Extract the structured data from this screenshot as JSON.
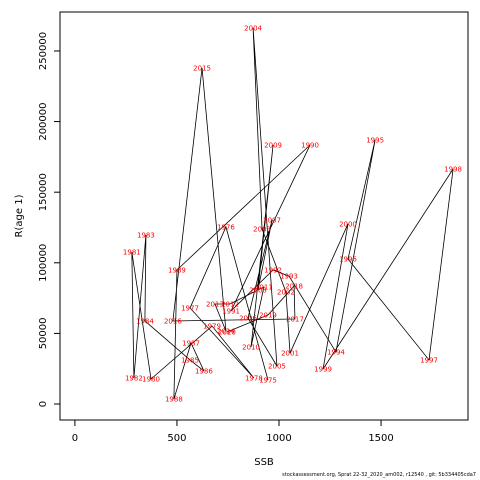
{
  "chart_data": {
    "type": "line",
    "x_label": "SSB",
    "y_label": "R(age 1)",
    "footer": "stockassessment.org, Sprat 22-32_2020_am002, r12540 , git: 5b334405cda7",
    "xlim": [
      -73,
      1926
    ],
    "ylim": [
      -11330,
      277600
    ],
    "xticks": [
      0,
      500,
      1000,
      1500
    ],
    "yticks": [
      0,
      50000,
      100000,
      150000,
      200000,
      250000
    ],
    "line_color": "#000000",
    "label_color": "#ff0000",
    "labels": [
      "1975",
      "1976",
      "1977",
      "1978",
      "1979",
      "1980",
      "1981",
      "1982",
      "1983",
      "1984",
      "1985",
      "1986",
      "1987",
      "1988",
      "1989",
      "1990",
      "1991",
      "1992",
      "1993",
      "1994",
      "1995",
      "1996",
      "1997",
      "1998",
      "1999",
      "2000",
      "2001",
      "2002",
      "2003",
      "2004",
      "2005",
      "2006",
      "2007",
      "2008",
      "2009",
      "2010",
      "2011",
      "2012",
      "2013",
      "2014",
      "2015",
      "2016",
      "2017",
      "2018",
      "2019",
      "2020"
    ],
    "x": [
      946,
      740,
      564,
      877,
      672,
      373,
      279,
      289,
      348,
      343,
      564,
      632,
      569,
      485,
      500,
      1152,
      765,
      971,
      1049,
      1279,
      1471,
      1338,
      1735,
      1853,
      1216,
      1338,
      1054,
      1034,
      917,
      873,
      990,
      848,
      966,
      897,
      971,
      863,
      926,
      760,
      686,
      740,
      623,
      480,
      1078,
      1074,
      946,
      745
    ],
    "values": [
      17000,
      125350,
      68000,
      18400,
      55200,
      17700,
      107600,
      18400,
      119700,
      58800,
      31200,
      23400,
      43200,
      3500,
      94900,
      183400,
      65900,
      94900,
      90600,
      36800,
      187000,
      102700,
      31200,
      166400,
      24800,
      127500,
      36100,
      79300,
      123900,
      266300,
      26900,
      60900,
      130300,
      80700,
      183400,
      40400,
      82900,
      70800,
      70800,
      51700,
      238000,
      58800,
      60200,
      83600,
      63000,
      51000
    ]
  }
}
